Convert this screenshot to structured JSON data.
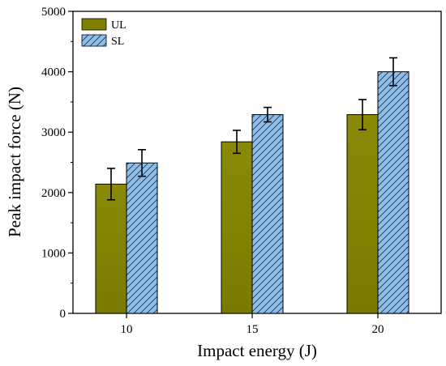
{
  "chart_data": {
    "type": "bar",
    "title": "",
    "xlabel": "Impact energy (J)",
    "ylabel": "Peak impact force (N)",
    "categories": [
      "10",
      "15",
      "20"
    ],
    "ylim": [
      0,
      5000
    ],
    "yticks": [
      "0",
      "1000",
      "2000",
      "3000",
      "4000",
      "5000"
    ],
    "grid": false,
    "legend_position": "top-left",
    "series": [
      {
        "name": "UL",
        "values": [
          2140,
          2840,
          3290
        ],
        "errors": [
          260,
          190,
          250
        ],
        "color": "#808000",
        "pattern": "solid"
      },
      {
        "name": "SL",
        "values": [
          2490,
          3290,
          4000
        ],
        "errors": [
          220,
          120,
          230
        ],
        "color": "#8fbde6",
        "pattern": "hatch"
      }
    ]
  }
}
